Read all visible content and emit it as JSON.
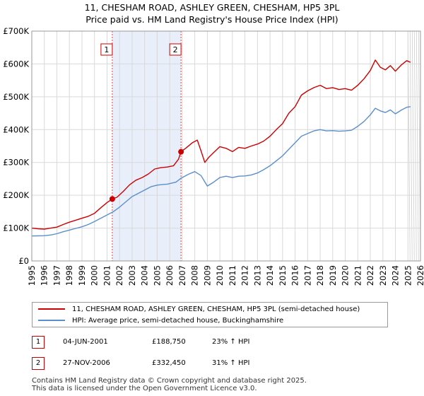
{
  "chart_data": {
    "type": "line",
    "title": "11, CHESHAM ROAD, ASHLEY GREEN, CHESHAM, HP5 3PL",
    "subtitle": "Price paid vs. HM Land Registry's House Price Index (HPI)",
    "xlim": [
      1995,
      2026
    ],
    "ylim": [
      0,
      700000
    ],
    "x_ticks": [
      "1995",
      "1996",
      "1997",
      "1998",
      "1999",
      "2000",
      "2001",
      "2002",
      "2003",
      "2004",
      "2005",
      "2006",
      "2007",
      "2008",
      "2009",
      "2010",
      "2011",
      "2012",
      "2013",
      "2014",
      "2015",
      "2016",
      "2017",
      "2018",
      "2019",
      "2020",
      "2021",
      "2022",
      "2023",
      "2024",
      "2025",
      "2026"
    ],
    "y_ticks": [
      {
        "value": 0,
        "label": "£0"
      },
      {
        "value": 100000,
        "label": "£100K"
      },
      {
        "value": 200000,
        "label": "£200K"
      },
      {
        "value": 300000,
        "label": "£300K"
      },
      {
        "value": 400000,
        "label": "£400K"
      },
      {
        "value": 500000,
        "label": "£500K"
      },
      {
        "value": 600000,
        "label": "£600K"
      },
      {
        "value": 700000,
        "label": "£700K"
      }
    ],
    "shaded_period": [
      2001.42,
      2006.9
    ],
    "forecast_start": 2025.0,
    "series": [
      {
        "name": "11, CHESHAM ROAD, ASHLEY GREEN, CHESHAM, HP5 3PL (semi-detached house)",
        "color": "#cc0000",
        "points": [
          [
            1995.0,
            100000
          ],
          [
            1995.5,
            98000
          ],
          [
            1996.0,
            97000
          ],
          [
            1996.5,
            100000
          ],
          [
            1997.0,
            103000
          ],
          [
            1997.5,
            111000
          ],
          [
            1998.0,
            118000
          ],
          [
            1998.5,
            124000
          ],
          [
            1999.0,
            130000
          ],
          [
            1999.5,
            136000
          ],
          [
            2000.0,
            145000
          ],
          [
            2000.5,
            162000
          ],
          [
            2001.0,
            178000
          ],
          [
            2001.42,
            188750
          ],
          [
            2001.8,
            194000
          ],
          [
            2002.3,
            212000
          ],
          [
            2002.8,
            232000
          ],
          [
            2003.3,
            246000
          ],
          [
            2003.8,
            254000
          ],
          [
            2004.3,
            265000
          ],
          [
            2004.8,
            280000
          ],
          [
            2005.3,
            284000
          ],
          [
            2005.8,
            286000
          ],
          [
            2006.3,
            290000
          ],
          [
            2006.7,
            310000
          ],
          [
            2006.9,
            332450
          ],
          [
            2007.3,
            344000
          ],
          [
            2007.8,
            360000
          ],
          [
            2008.2,
            368000
          ],
          [
            2008.5,
            335000
          ],
          [
            2008.8,
            300000
          ],
          [
            2009.1,
            315000
          ],
          [
            2009.5,
            330000
          ],
          [
            2010.0,
            348000
          ],
          [
            2010.5,
            343000
          ],
          [
            2011.0,
            333000
          ],
          [
            2011.5,
            346000
          ],
          [
            2012.0,
            343000
          ],
          [
            2012.5,
            350000
          ],
          [
            2013.0,
            356000
          ],
          [
            2013.5,
            365000
          ],
          [
            2014.0,
            380000
          ],
          [
            2014.5,
            400000
          ],
          [
            2015.0,
            418000
          ],
          [
            2015.5,
            450000
          ],
          [
            2016.0,
            470000
          ],
          [
            2016.5,
            505000
          ],
          [
            2017.0,
            518000
          ],
          [
            2017.5,
            528000
          ],
          [
            2018.0,
            535000
          ],
          [
            2018.5,
            525000
          ],
          [
            2019.0,
            528000
          ],
          [
            2019.5,
            522000
          ],
          [
            2020.0,
            525000
          ],
          [
            2020.5,
            520000
          ],
          [
            2021.0,
            535000
          ],
          [
            2021.5,
            555000
          ],
          [
            2022.0,
            580000
          ],
          [
            2022.4,
            612000
          ],
          [
            2022.8,
            590000
          ],
          [
            2023.2,
            582000
          ],
          [
            2023.6,
            595000
          ],
          [
            2024.0,
            578000
          ],
          [
            2024.5,
            598000
          ],
          [
            2024.9,
            610000
          ],
          [
            2025.2,
            605000
          ]
        ]
      },
      {
        "name": "HPI: Average price, semi-detached house, Buckinghamshire",
        "color": "#5b8fcc",
        "points": [
          [
            1995.0,
            76000
          ],
          [
            1995.5,
            76500
          ],
          [
            1996.0,
            77000
          ],
          [
            1996.5,
            79000
          ],
          [
            1997.0,
            83000
          ],
          [
            1997.5,
            89000
          ],
          [
            1998.0,
            94000
          ],
          [
            1998.5,
            99000
          ],
          [
            1999.0,
            104000
          ],
          [
            1999.5,
            111000
          ],
          [
            2000.0,
            120000
          ],
          [
            2000.5,
            130000
          ],
          [
            2001.0,
            140000
          ],
          [
            2001.5,
            150000
          ],
          [
            2002.0,
            164000
          ],
          [
            2002.5,
            180000
          ],
          [
            2003.0,
            196000
          ],
          [
            2003.5,
            206000
          ],
          [
            2004.0,
            216000
          ],
          [
            2004.5,
            226000
          ],
          [
            2005.0,
            231000
          ],
          [
            2005.5,
            233000
          ],
          [
            2005.8,
            234000
          ],
          [
            2006.5,
            240000
          ],
          [
            2006.9,
            252000
          ],
          [
            2007.5,
            264000
          ],
          [
            2008.0,
            272000
          ],
          [
            2008.5,
            260000
          ],
          [
            2009.0,
            228000
          ],
          [
            2009.5,
            240000
          ],
          [
            2010.0,
            254000
          ],
          [
            2010.5,
            258000
          ],
          [
            2011.0,
            254000
          ],
          [
            2011.5,
            258000
          ],
          [
            2012.0,
            259000
          ],
          [
            2012.5,
            262000
          ],
          [
            2013.0,
            268000
          ],
          [
            2013.5,
            278000
          ],
          [
            2014.0,
            290000
          ],
          [
            2014.5,
            305000
          ],
          [
            2015.0,
            320000
          ],
          [
            2015.5,
            340000
          ],
          [
            2016.0,
            360000
          ],
          [
            2016.5,
            380000
          ],
          [
            2017.0,
            388000
          ],
          [
            2017.5,
            396000
          ],
          [
            2018.0,
            400000
          ],
          [
            2018.5,
            396000
          ],
          [
            2019.0,
            397000
          ],
          [
            2019.5,
            395000
          ],
          [
            2020.0,
            396000
          ],
          [
            2020.5,
            398000
          ],
          [
            2021.0,
            410000
          ],
          [
            2021.5,
            425000
          ],
          [
            2022.0,
            445000
          ],
          [
            2022.4,
            465000
          ],
          [
            2022.8,
            457000
          ],
          [
            2023.2,
            452000
          ],
          [
            2023.6,
            460000
          ],
          [
            2024.0,
            448000
          ],
          [
            2024.5,
            460000
          ],
          [
            2024.9,
            468000
          ],
          [
            2025.2,
            470000
          ]
        ]
      }
    ],
    "transactions": [
      {
        "label": "1",
        "date": "04-JUN-2001",
        "x": 2001.42,
        "price": 188750,
        "price_label": "£188,750",
        "hpi_label": "23% ↑ HPI"
      },
      {
        "label": "2",
        "date": "27-NOV-2006",
        "x": 2006.9,
        "price": 332450,
        "price_label": "£332,450",
        "hpi_label": "31% ↑ HPI"
      }
    ]
  },
  "legend": {
    "red_label": "11, CHESHAM ROAD, ASHLEY GREEN, CHESHAM, HP5 3PL (semi-detached house)",
    "blue_label": "HPI: Average price, semi-detached house, Buckinghamshire"
  },
  "footer": {
    "line1": "Contains HM Land Registry data © Crown copyright and database right 2025.",
    "line2": "This data is licensed under the Open Government Licence v3.0."
  },
  "colors": {
    "red": "#cc0000",
    "blue": "#5b8fcc",
    "shade": "#e8eefa",
    "grid": "#d9d9d9"
  }
}
